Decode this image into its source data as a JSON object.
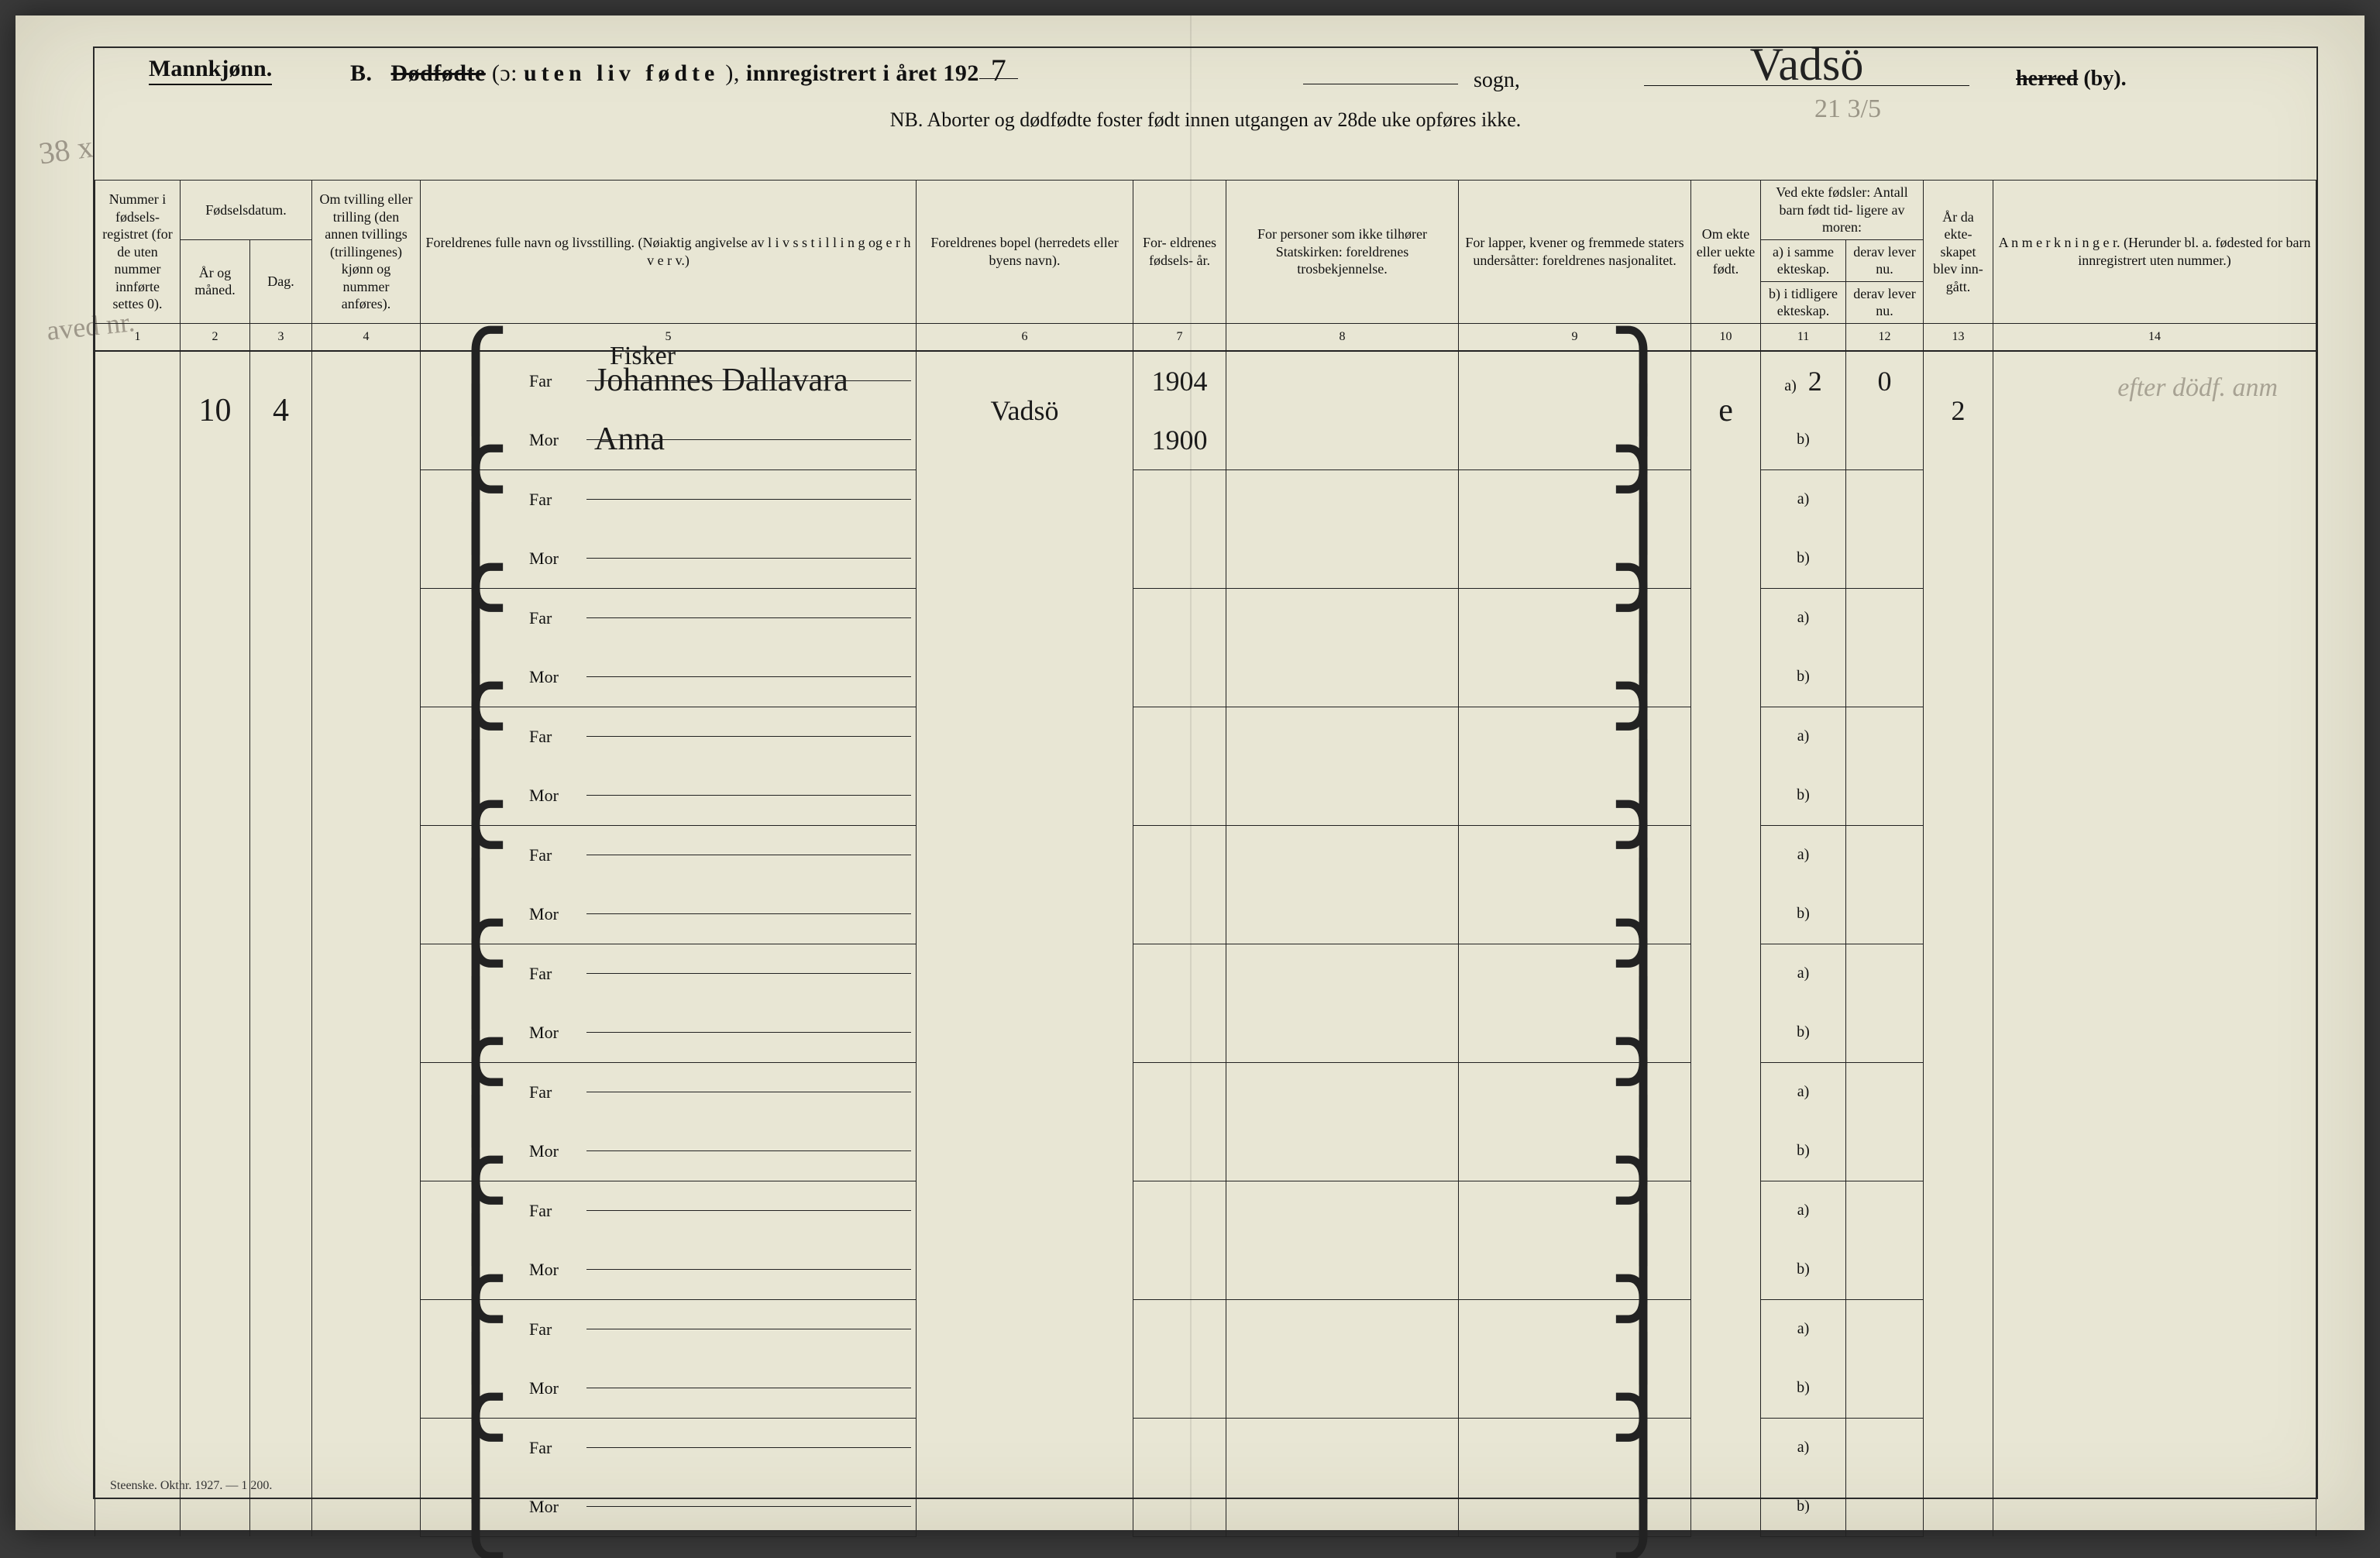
{
  "header": {
    "gender": "Mannkjønn.",
    "section_letter": "B.",
    "dodfodte_strike": "Dødfødte",
    "ie": "(ɔ:",
    "uten_liv": "uten liv fødte",
    "close": "),",
    "innreg": "innregistrert i året 192",
    "year_digit": "7",
    "sogn_label": "sogn,",
    "place_hw": "Vadsö",
    "herred_strike": "herred",
    "by": " (by).",
    "nb": "NB.  Aborter og dødfødte foster født innen utgangen av 28de uke opføres ikke.",
    "top_note": "21 3/5"
  },
  "marginal": {
    "m1": "38 x",
    "m2": "aved nr.",
    "row_note": "efter dödf. anm"
  },
  "columns": {
    "c1": "Nummer i fødsels-\nregistret\n(for de\nuten\nnummer\ninnførte\nsettes 0).",
    "c2_group": "Fødselsdatum.",
    "c2": "År\nog\nmåned.",
    "c3": "Dag.",
    "c4": "Om tvilling\neller trilling\n(den annen\ntvillings\n(trillingenes)\nkjønn og\nnummer\nanføres).",
    "c5": "Foreldrenes fulle navn og livsstilling.\n(Nøiaktig angivelse av  l i v s s t i l l i n g  og  e r h v e r v.)",
    "c6": "Foreldrenes bopel\n(herredets eller byens navn).",
    "c7": "For-\neldrenes\nfødsels-\når.",
    "c8": "For personer som ikke\ntilhører Statskirken:\nforeldrenes trosbekjennelse.",
    "c9": "For lapper, kvener og\nfremmede staters\nundersåtter:\nforeldrenes nasjonalitet.",
    "c10": "Om\nekte\neller\nuekte\nfødt.",
    "c11_group": "Ved ekte fødsler:\nAntall barn født tid-\nligere av moren:",
    "c11a": "a) i samme\nekteskap.",
    "c11b": "derav\nlever nu.",
    "c11c": "b) i tidligere\nekteskap.",
    "c11d": "derav\nlever nu.",
    "c13": "År\nda\nekte-\nskapet\nblev\ninn-\ngått.",
    "c14": "A n m e r k n i n g e r.\n\n(Herunder bl. a. fødested\nfor barn innregistrert\nuten nummer.)"
  },
  "colnums": [
    "1",
    "2",
    "3",
    "4",
    "5",
    "6",
    "7",
    "8",
    "9",
    "10",
    "11",
    "12",
    "13",
    "14"
  ],
  "labels": {
    "far": "Far",
    "mor": "Mor",
    "a": "a)",
    "b": "b)"
  },
  "row1": {
    "num": "",
    "year_month": "10",
    "day": "4",
    "twin": "",
    "occ": "Fisker",
    "far_name": "Johannes Dallavara",
    "mor_name": "Anna",
    "bopel": "Vadsö",
    "far_year": "1904",
    "mor_year": "1900",
    "ekte": "e",
    "c11": "2",
    "c12": "0",
    "c13": "2"
  },
  "footer": "Steenske. Okthr. 1927. — 1 200."
}
